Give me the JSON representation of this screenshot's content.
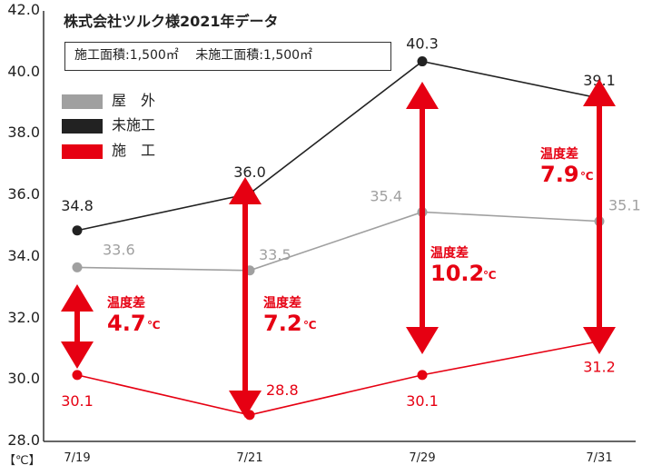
{
  "chart_data": {
    "type": "line",
    "title": "株式会社ツルク様2021年データ",
    "subtitle": "施工面積:1,500㎡　未施工面積:1,500㎡",
    "area_note": {
      "construction": "施工面積:1,500㎡",
      "unconstructed": "未施工面積:1,500㎡"
    },
    "categories": [
      "7/19",
      "7/21",
      "7/29",
      "7/31"
    ],
    "ylabel": "【℃】",
    "ylim": [
      28.0,
      42.0
    ],
    "yticks": [
      "28.0",
      "30.0",
      "32.0",
      "34.0",
      "36.0",
      "38.0",
      "40.0",
      "42.0"
    ],
    "grid": false,
    "legend_position": "top-left",
    "series": [
      {
        "name": "屋　外",
        "values": [
          33.6,
          33.5,
          35.4,
          35.1
        ],
        "labels": [
          "33.6",
          "33.5",
          "35.4",
          "35.1"
        ],
        "color": "#a0a0a0"
      },
      {
        "name": "未施工",
        "values": [
          34.8,
          36.0,
          40.3,
          39.1
        ],
        "labels": [
          "34.8",
          "36.0",
          "40.3",
          "39.1"
        ],
        "color": "#222222"
      },
      {
        "name": "施　工",
        "values": [
          30.1,
          28.8,
          30.1,
          31.2
        ],
        "labels": [
          "30.1",
          "28.8",
          "30.1",
          "31.2"
        ],
        "color": "#e60012"
      }
    ],
    "differences": [
      {
        "category": "7/19",
        "label": "温度差",
        "value": "4.7",
        "unit": "℃"
      },
      {
        "category": "7/21",
        "label": "温度差",
        "value": "7.2",
        "unit": "℃"
      },
      {
        "category": "7/29",
        "label": "温度差",
        "value": "10.2",
        "unit": "℃"
      },
      {
        "category": "7/31",
        "label": "温度差",
        "value": "7.9",
        "unit": "℃"
      }
    ],
    "accent_color": "#e60012"
  }
}
